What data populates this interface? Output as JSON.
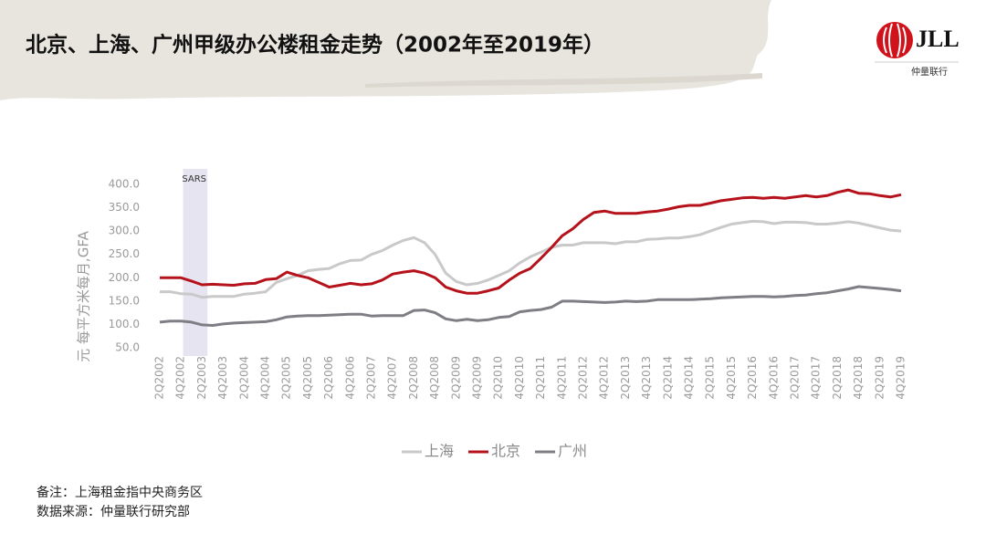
{
  "chart_data": {
    "type": "line",
    "title": "北京、上海、广州甲级办公楼租金走势（2002年至2019年）",
    "y_label": "元 每平方米每月,GFA",
    "logo": {
      "mark": "JLL",
      "name": "仲量联行"
    },
    "notes": [
      "备注：上海租金指中央商务区",
      "数据来源：仲量联行研究部"
    ],
    "shaded_band": {
      "label": "SARS",
      "from": "4Q2002",
      "to": "2Q2003"
    },
    "categories": [
      "2Q2002",
      null,
      "4Q2002",
      null,
      "2Q2003",
      null,
      "4Q2003",
      null,
      "2Q2004",
      null,
      "4Q2004",
      null,
      "2Q2005",
      null,
      "4Q2005",
      null,
      "2Q2006",
      null,
      "4Q2006",
      null,
      "2Q2007",
      null,
      "4Q2007",
      null,
      "2Q2008",
      null,
      "4Q2008",
      null,
      "2Q2009",
      null,
      "4Q2009",
      null,
      "2Q2010",
      null,
      "4Q2010",
      null,
      "2Q2011",
      null,
      "4Q2011",
      null,
      "2Q2012",
      null,
      "4Q2012",
      null,
      "2Q2013",
      null,
      "4Q2013",
      null,
      "2Q2014",
      null,
      "4Q2014",
      null,
      "2Q2015",
      null,
      "4Q2015",
      null,
      "2Q2016",
      null,
      "4Q2016",
      null,
      "2Q2017",
      null,
      "4Q2017",
      null,
      "2Q2018",
      null,
      "4Q2018",
      null,
      "2Q2019",
      null,
      "4Q2019"
    ],
    "series": [
      {
        "name": "上海",
        "color": "#c9c9c9",
        "values": [
          170,
          170,
          166,
          165,
          158,
          160,
          160,
          160,
          165,
          167,
          170,
          190,
          198,
          205,
          215,
          218,
          220,
          230,
          237,
          238,
          250,
          258,
          270,
          280,
          286,
          275,
          250,
          210,
          192,
          185,
          188,
          195,
          205,
          215,
          232,
          245,
          255,
          265,
          270,
          270,
          275,
          275,
          275,
          273,
          277,
          277,
          282,
          283,
          285,
          285,
          288,
          292,
          300,
          308,
          315,
          318,
          321,
          320,
          316,
          319,
          319,
          318,
          315,
          315,
          317,
          320,
          317,
          312,
          307,
          302,
          300
        ]
      },
      {
        "name": "北京",
        "color": "#b5121b",
        "values": [
          200,
          200,
          200,
          193,
          185,
          186,
          185,
          184,
          187,
          188,
          196,
          198,
          212,
          205,
          200,
          190,
          180,
          184,
          188,
          185,
          187,
          195,
          208,
          212,
          215,
          210,
          200,
          180,
          172,
          167,
          167,
          172,
          178,
          195,
          210,
          220,
          242,
          265,
          290,
          305,
          325,
          340,
          343,
          338,
          338,
          338,
          341,
          343,
          347,
          352,
          355,
          355,
          360,
          365,
          368,
          371,
          372,
          370,
          372,
          370,
          373,
          376,
          373,
          376,
          383,
          388,
          381,
          380,
          376,
          373,
          378
        ]
      },
      {
        "name": "广州",
        "color": "#7f7e85",
        "values": [
          105,
          107,
          107,
          105,
          99,
          98,
          101,
          103,
          104,
          105,
          106,
          110,
          116,
          118,
          119,
          119,
          120,
          121,
          122,
          122,
          118,
          119,
          119,
          119,
          130,
          131,
          125,
          112,
          108,
          111,
          108,
          110,
          115,
          117,
          127,
          130,
          132,
          137,
          150,
          150,
          149,
          148,
          147,
          148,
          150,
          149,
          150,
          153,
          153,
          153,
          153,
          154,
          155,
          157,
          158,
          159,
          160,
          160,
          159,
          160,
          162,
          163,
          166,
          168,
          172,
          176,
          181,
          179,
          177,
          175,
          172
        ]
      }
    ],
    "ylim": [
      50,
      400
    ],
    "yticks": [
      {
        "value": 50,
        "label": "50.0"
      },
      {
        "value": 100,
        "label": "100.0"
      },
      {
        "value": 150,
        "label": "150.0"
      },
      {
        "value": 200,
        "label": "200.0"
      },
      {
        "value": 250,
        "label": "250.0"
      },
      {
        "value": 300,
        "label": "300.0"
      },
      {
        "value": 350,
        "label": "350.0"
      },
      {
        "value": 400,
        "label": "400.0"
      }
    ],
    "legend": "bottom"
  }
}
